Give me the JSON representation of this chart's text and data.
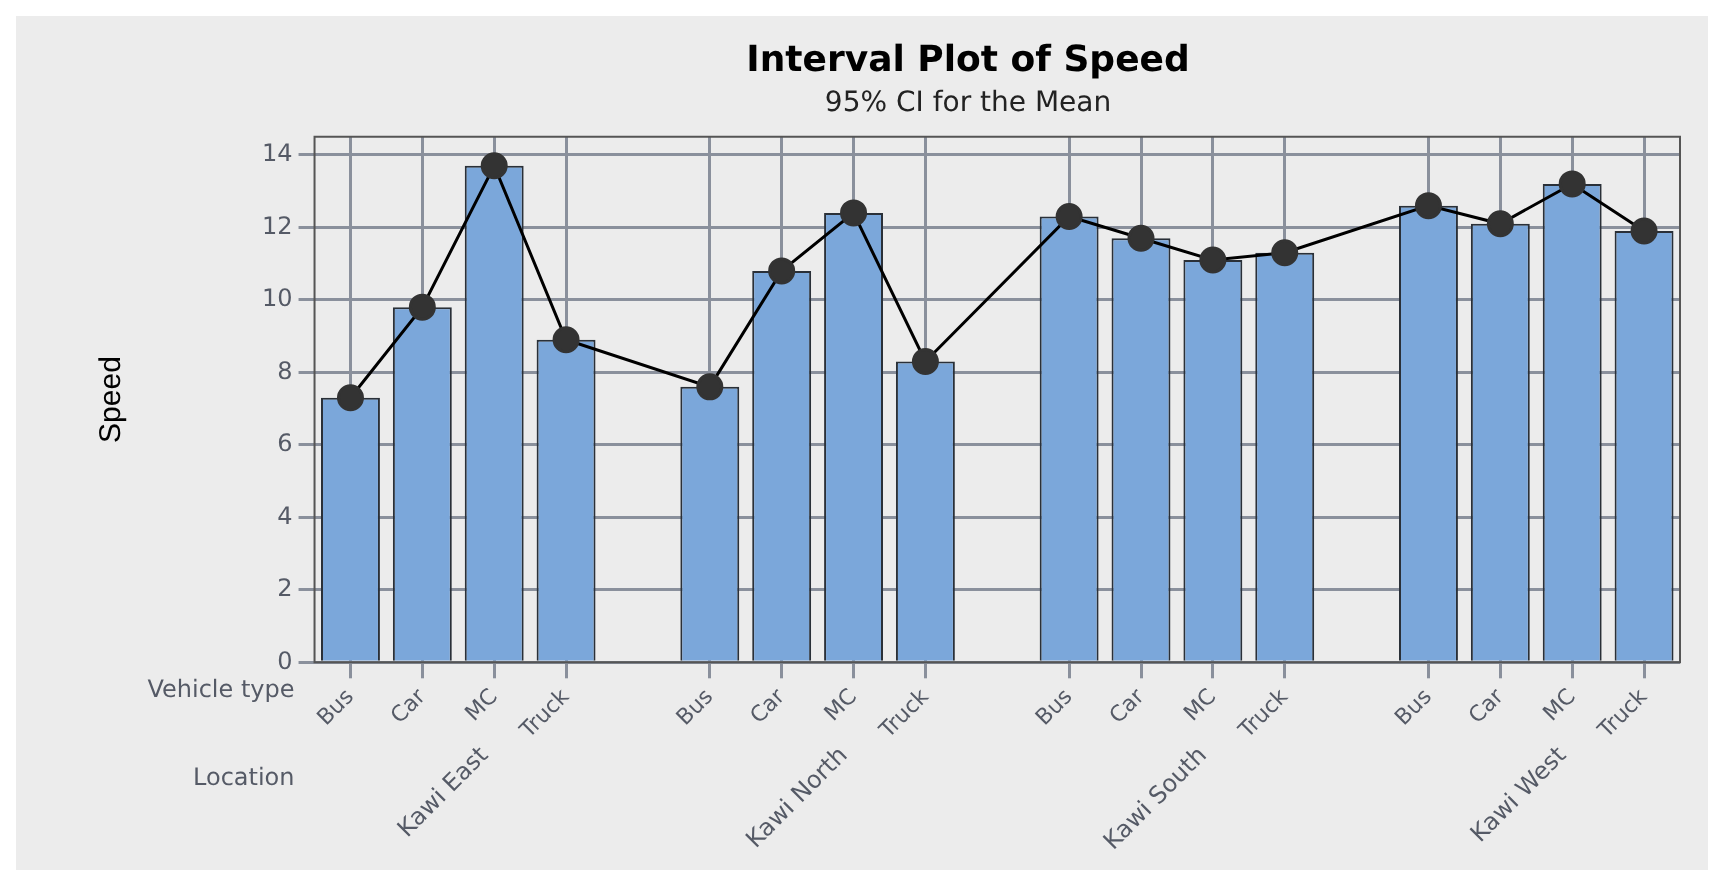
{
  "chart_data": {
    "type": "bar",
    "title": "Interval Plot of Speed",
    "subtitle": "95% CI for the Mean",
    "ylabel": "Speed",
    "categories": [
      "Bus",
      "Car",
      "MC",
      "Truck",
      null,
      "Bus",
      "Car",
      "MC",
      "Truck",
      null,
      "Bus",
      "Car",
      "MC",
      "Truck",
      null,
      "Bus",
      "Car",
      "MC",
      "Truck"
    ],
    "series": [
      {
        "color": "#7ba7da",
        "values": [
          7.3,
          9.8,
          13.7,
          8.9,
          null,
          7.6,
          10.8,
          12.4,
          8.3,
          null,
          12.3,
          11.7,
          11.1,
          11.3,
          null,
          12.6,
          12.1,
          13.2,
          11.9
        ]
      },
      {
        "type": "line",
        "color": "#333333",
        "marker": "circle",
        "values": [
          7.3,
          9.8,
          13.7,
          8.9,
          null,
          7.6,
          10.8,
          12.4,
          8.3,
          null,
          12.3,
          11.7,
          11.1,
          11.3,
          null,
          12.6,
          12.1,
          13.2,
          11.9
        ]
      }
    ],
    "annotations": [
      "Vehicle type",
      "Location",
      "Kawi East",
      "Kawi North",
      "Kawi South",
      "Kawi West"
    ],
    "ylim": [
      0,
      14.5
    ],
    "yticks": [
      0,
      2,
      4,
      6,
      8,
      10,
      12,
      14
    ],
    "grid": true,
    "legend": false
  }
}
